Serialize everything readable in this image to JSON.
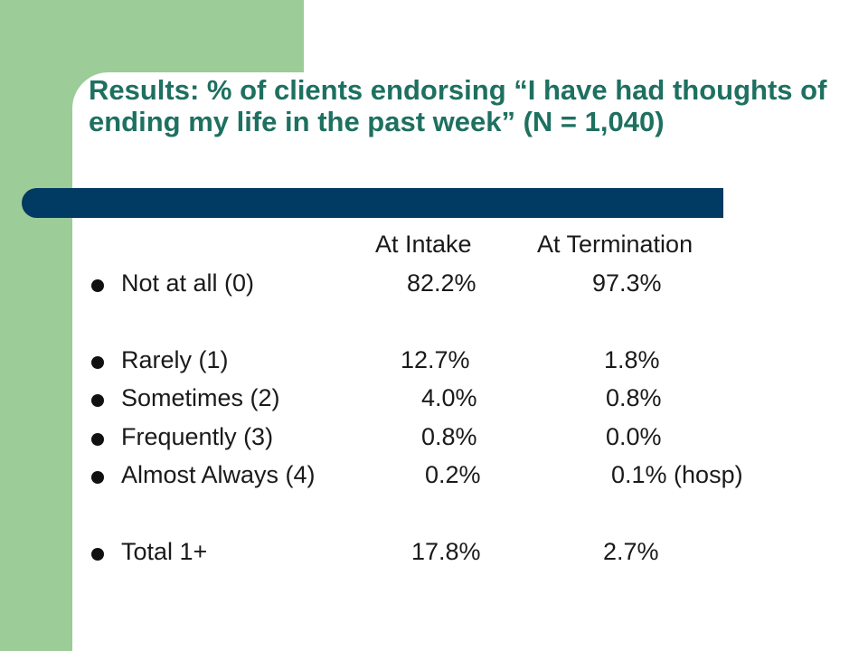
{
  "slide": {
    "title": "Results:  % of clients endorsing “I have had thoughts of ending my life in the past week” (N = 1,040)",
    "colors": {
      "green_band": "#9ccc97",
      "title_text": "#1e7060",
      "header_bar": "#013a62",
      "body_text": "#1a1a1a"
    },
    "columns": {
      "intake": "At  Intake",
      "termination": "At  Termination"
    },
    "rows": [
      {
        "label": "Not at all (0)",
        "intake": "82.2%",
        "termination": "97.3%"
      },
      {
        "label": "Rarely (1)",
        "intake": "12.7%",
        "termination": "1.8%"
      },
      {
        "label": "Sometimes (2)",
        "intake": "4.0%",
        "termination": "0.8%"
      },
      {
        "label": "Frequently (3)",
        "intake": "0.8%",
        "termination": "0.0%"
      },
      {
        "label": "Almost Always (4)",
        "intake": "0.2%",
        "termination": "0.1% (hosp)"
      },
      {
        "label": "Total 1+",
        "intake": "17.8%",
        "termination": "2.7%"
      }
    ]
  }
}
